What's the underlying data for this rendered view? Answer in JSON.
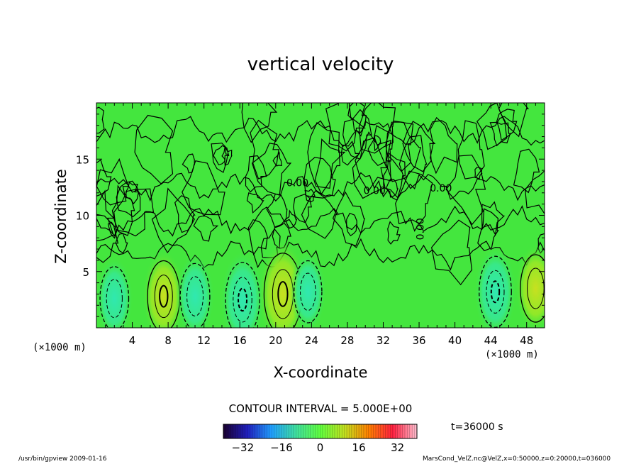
{
  "chart_data": {
    "type": "heatmap",
    "title": "vertical velocity",
    "xlabel": "X-coordinate",
    "ylabel": "Z-coordinate",
    "x_unit": "(×1000 m)",
    "y_unit": "(×1000 m)",
    "xlim": [
      0,
      50
    ],
    "ylim": [
      0,
      20
    ],
    "x_ticks": [
      4,
      8,
      12,
      16,
      20,
      24,
      28,
      32,
      36,
      40,
      44,
      48
    ],
    "y_ticks": [
      5,
      10,
      15
    ],
    "contour_interval_text": "CONTOUR INTERVAL = 5.000E+00",
    "contour_labels": [
      "0.00",
      "0.00",
      "0.00",
      "0.00"
    ],
    "time_label": "t=36000 s",
    "colorbar": {
      "range": [
        -40,
        40
      ],
      "ticks": [
        -32,
        -16,
        0,
        16,
        32
      ],
      "colors": [
        "#1a0030",
        "#2020c0",
        "#20a0ff",
        "#40e0a0",
        "#60ff40",
        "#c0e020",
        "#ff8000",
        "#ff2040",
        "#ffc0d0"
      ]
    },
    "features": [
      {
        "x": 7.5,
        "z": 2.8,
        "value": 12,
        "sign": "positive"
      },
      {
        "x": 2.0,
        "z": 2.6,
        "value": -8,
        "sign": "negative"
      },
      {
        "x": 11.0,
        "z": 2.8,
        "value": -9,
        "sign": "negative"
      },
      {
        "x": 16.3,
        "z": 2.5,
        "value": -14,
        "sign": "negative"
      },
      {
        "x": 20.8,
        "z": 3.0,
        "value": 18,
        "sign": "positive"
      },
      {
        "x": 23.6,
        "z": 3.2,
        "value": -7,
        "sign": "negative"
      },
      {
        "x": 44.5,
        "z": 3.2,
        "value": -12,
        "sign": "negative"
      },
      {
        "x": 49.0,
        "z": 3.5,
        "value": 10,
        "sign": "positive"
      }
    ],
    "background_color": "#44e63e"
  },
  "footer": {
    "left": "/usr/bin/gpview  2009-01-16",
    "right": "MarsCond_VelZ.nc@VelZ,x=0:50000,z=0:20000,t=036000"
  }
}
